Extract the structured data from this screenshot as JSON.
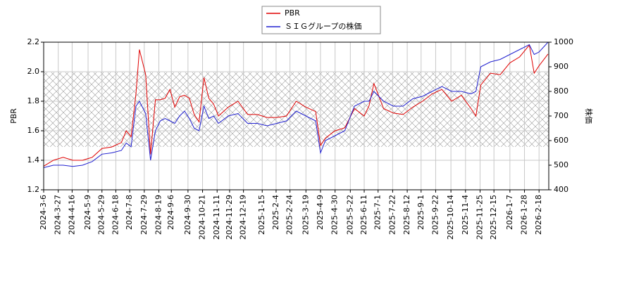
{
  "chart_data": {
    "type": "line",
    "ylabel": "PBR",
    "y2label": "株価",
    "x": [
      "2024-3-6",
      "2024-3-20",
      "2024-4-3",
      "2024-4-17",
      "2024-5-1",
      "2024-5-15",
      "2024-5-29",
      "2024-6-12",
      "2024-6-26",
      "2024-7-3",
      "2024-7-10",
      "2024-7-17",
      "2024-7-22",
      "2024-7-31",
      "2024-8-7",
      "2024-8-14",
      "2024-8-21",
      "2024-8-28",
      "2024-9-4",
      "2024-9-11",
      "2024-9-18",
      "2024-9-25",
      "2024-10-2",
      "2024-10-9",
      "2024-10-16",
      "2024-10-23",
      "2024-10-30",
      "2024-11-6",
      "2024-11-13",
      "2024-11-27",
      "2024-12-11",
      "2024-12-25",
      "2025-1-8",
      "2025-1-22",
      "2025-2-5",
      "2025-2-19",
      "2025-3-5",
      "2025-3-19",
      "2025-4-2",
      "2025-4-9",
      "2025-4-16",
      "2025-4-30",
      "2025-5-14",
      "2025-5-28",
      "2025-6-11",
      "2025-6-18",
      "2025-6-25",
      "2025-7-9",
      "2025-7-23",
      "2025-8-6",
      "2025-8-20",
      "2025-9-3",
      "2025-9-17",
      "2025-10-1",
      "2025-10-15",
      "2025-10-29",
      "2025-11-12",
      "2025-11-19",
      "2025-11-26",
      "2025-12-10",
      "2025-12-24",
      "2026-1-7",
      "2026-1-21",
      "2026-2-4",
      "2026-2-11",
      "2026-2-18",
      "2026-3-3"
    ],
    "series": [
      {
        "name": "PBR",
        "color": "#e00000",
        "axis": "y",
        "values": [
          1.36,
          1.4,
          1.42,
          1.4,
          1.4,
          1.42,
          1.48,
          1.49,
          1.52,
          1.6,
          1.56,
          1.85,
          2.15,
          1.98,
          1.44,
          1.81,
          1.81,
          1.82,
          1.88,
          1.76,
          1.83,
          1.84,
          1.82,
          1.71,
          1.66,
          1.96,
          1.82,
          1.78,
          1.7,
          1.76,
          1.8,
          1.71,
          1.71,
          1.69,
          1.69,
          1.7,
          1.8,
          1.76,
          1.73,
          1.5,
          1.55,
          1.6,
          1.62,
          1.75,
          1.7,
          1.77,
          1.92,
          1.75,
          1.72,
          1.71,
          1.76,
          1.8,
          1.85,
          1.88,
          1.8,
          1.84,
          1.75,
          1.7,
          1.91,
          1.99,
          1.98,
          2.06,
          2.1,
          2.18,
          1.99,
          2.04,
          2.12
        ]
      },
      {
        "name": "ＳＩＧグループの株価",
        "color": "#2020d0",
        "axis": "y2",
        "values": [
          490,
          500,
          500,
          495,
          500,
          515,
          545,
          550,
          560,
          590,
          575,
          740,
          760,
          710,
          520,
          640,
          680,
          690,
          680,
          670,
          700,
          720,
          690,
          650,
          640,
          740,
          690,
          700,
          670,
          700,
          710,
          670,
          670,
          660,
          670,
          680,
          720,
          700,
          680,
          550,
          600,
          620,
          640,
          740,
          760,
          760,
          800,
          760,
          740,
          740,
          770,
          780,
          800,
          820,
          800,
          800,
          790,
          800,
          900,
          920,
          930,
          950,
          970,
          990,
          950,
          960,
          1000
        ]
      }
    ],
    "xlim": [
      "2024-3-6",
      "2026-3-4"
    ],
    "xticks": [
      "2024-3-6",
      "2024-3-27",
      "2024-4-16",
      "2024-5-9",
      "2024-5-29",
      "2024-6-18",
      "2024-7-8",
      "2024-7-29",
      "2024-8-19",
      "2024-9-6",
      "2024-9-30",
      "2024-10-21",
      "2024-11-11",
      "2024-11-29",
      "2024-12-19",
      "2025-1-15",
      "2025-2-4",
      "2025-2-24",
      "2025-3-19",
      "2025-4-9",
      "2025-4-30",
      "2025-5-22",
      "2025-6-11",
      "2025-7-1",
      "2025-7-22",
      "2025-8-12",
      "2025-9-1",
      "2025-9-22",
      "2025-10-14",
      "2025-11-4",
      "2025-11-25",
      "2025-12-15",
      "2026-1-7",
      "2026-1-28",
      "2026-2-18"
    ],
    "ylim": [
      1.2,
      2.2
    ],
    "yticks": [
      1.2,
      1.4,
      1.6,
      1.8,
      {
        "value": 2,
        "label": "2.0"
      },
      2.2
    ],
    "y2lim": [
      400,
      1000
    ],
    "y2ticks": [
      400,
      500,
      600,
      700,
      800,
      900,
      1000
    ],
    "grid": true,
    "legend": "top"
  }
}
